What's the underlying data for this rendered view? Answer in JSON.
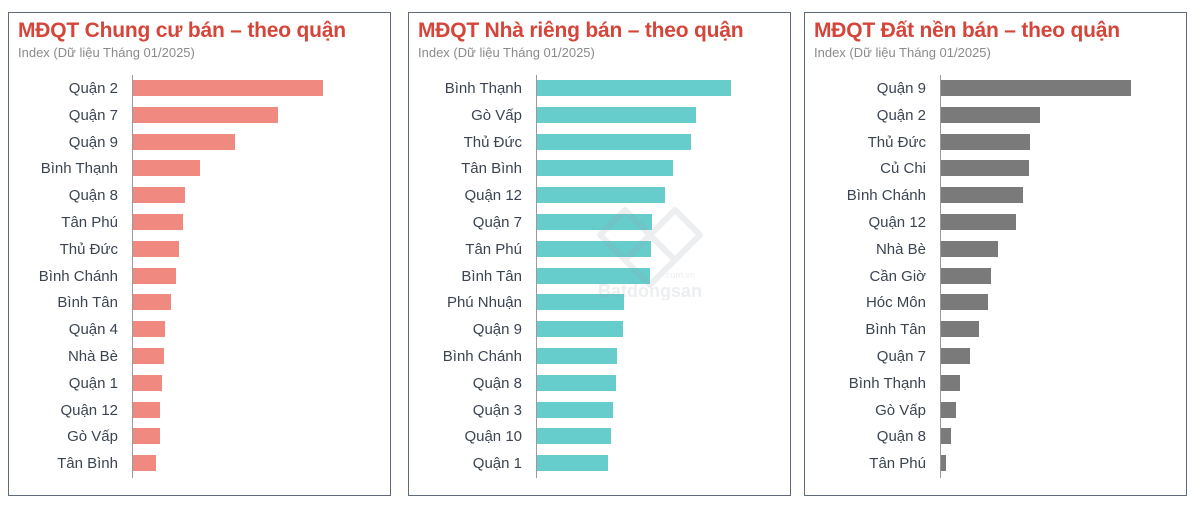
{
  "panels": [
    {
      "title": "MĐQT Chung cư bán – theo quận",
      "subtitle": "Index (Dữ liệu Tháng 01/2025)",
      "color": "#f08a80"
    },
    {
      "title": "MĐQT Nhà riêng bán – theo quận",
      "subtitle": "Index (Dữ liệu Tháng 01/2025)",
      "color": "#66cccc"
    },
    {
      "title": "MĐQT Đất nền bán – theo quận",
      "subtitle": "Index (Dữ liệu Tháng 01/2025)",
      "color": "#7a7a7a"
    }
  ],
  "watermark": {
    "brand": "Batdongsan",
    "suffix": ".com.vn"
  },
  "chart_data": [
    {
      "type": "bar",
      "orientation": "horizontal",
      "title": "MĐQT Chung cư bán – theo quận",
      "subtitle": "Index (Dữ liệu Tháng 01/2025)",
      "xlabel": "",
      "ylabel": "",
      "grid": false,
      "note": "No value axis shown; values are relative bar lengths (pixels)",
      "categories": [
        "Quận 2",
        "Quận 7",
        "Quận 9",
        "Bình Thạnh",
        "Quận 8",
        "Tân Phú",
        "Thủ Đức",
        "Bình Chánh",
        "Bình Tân",
        "Quận 4",
        "Nhà Bè",
        "Quận 1",
        "Quận 12",
        "Gò Vấp",
        "Tân Bình"
      ],
      "values": [
        190,
        145,
        102,
        67,
        52,
        50,
        46,
        43,
        38,
        32,
        31,
        29,
        27,
        27,
        23
      ],
      "color": "#f08a80"
    },
    {
      "type": "bar",
      "orientation": "horizontal",
      "title": "MĐQT Nhà riêng bán – theo quận",
      "subtitle": "Index (Dữ liệu Tháng 01/2025)",
      "xlabel": "",
      "ylabel": "",
      "grid": false,
      "note": "No value axis shown; values are relative bar lengths (pixels)",
      "categories": [
        "Bình Thạnh",
        "Gò Vấp",
        "Thủ Đức",
        "Tân Bình",
        "Quận 12",
        "Quận 7",
        "Tân Phú",
        "Bình Tân",
        "Phú Nhuận",
        "Quận 9",
        "Bình Chánh",
        "Quận 8",
        "Quận 3",
        "Quận 10",
        "Quận 1"
      ],
      "values": [
        194,
        159,
        154,
        136,
        128,
        115,
        114,
        113,
        87,
        86,
        80,
        79,
        76,
        74,
        71
      ],
      "color": "#66cccc"
    },
    {
      "type": "bar",
      "orientation": "horizontal",
      "title": "MĐQT Đất nền bán – theo quận",
      "subtitle": "Index (Dữ liệu Tháng 01/2025)",
      "xlabel": "",
      "ylabel": "",
      "grid": false,
      "note": "No value axis shown; values are relative bar lengths (pixels)",
      "categories": [
        "Quận 9",
        "Quận 2",
        "Thủ Đức",
        "Củ Chi",
        "Bình Chánh",
        "Quận 12",
        "Nhà Bè",
        "Cần Giờ",
        "Hóc Môn",
        "Bình Tân",
        "Quận 7",
        "Bình Thạnh",
        "Gò Vấp",
        "Quận 8",
        "Tân Phú"
      ],
      "values": [
        190,
        99,
        89,
        88,
        82,
        75,
        57,
        50,
        47,
        38,
        29,
        19,
        15,
        10,
        5
      ],
      "color": "#7a7a7a"
    }
  ]
}
